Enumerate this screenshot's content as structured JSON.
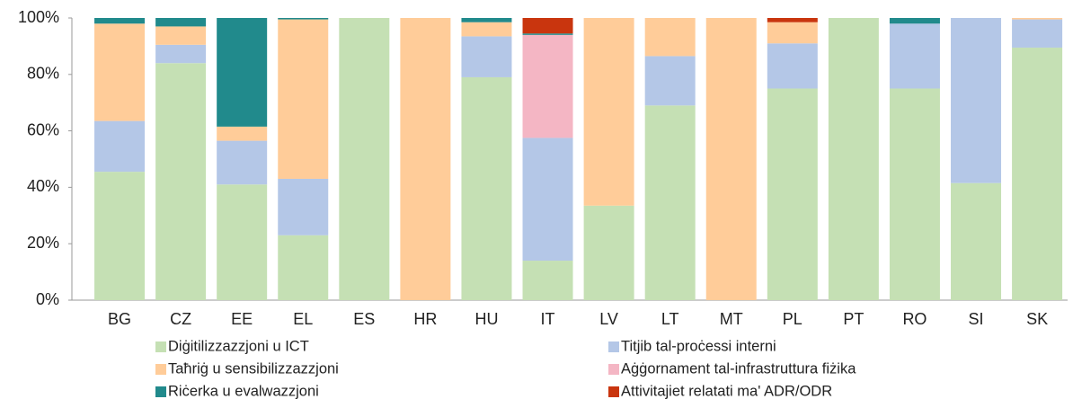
{
  "chart_data": {
    "type": "stacked_bar",
    "categories": [
      "BG",
      "CZ",
      "EE",
      "EL",
      "ES",
      "HR",
      "HU",
      "IT",
      "LV",
      "LT",
      "MT",
      "PL",
      "PT",
      "RO",
      "SI",
      "SK"
    ],
    "series": [
      {
        "name": "Diġitilizzazzjoni u ICT",
        "color": "#c5e0b4",
        "values": [
          45.5,
          84,
          41,
          23,
          100,
          0,
          79,
          14,
          33.5,
          69,
          0,
          75,
          100,
          75,
          41.5,
          89.5
        ]
      },
      {
        "name": "Titjib tal-proċessi interni",
        "color": "#b4c7e7",
        "values": [
          18,
          6.5,
          15.5,
          20,
          0,
          0,
          14.5,
          43.5,
          0,
          17.5,
          0,
          16,
          0,
          23,
          58.5,
          10
        ]
      },
      {
        "name": "Taħriġ u sensibilizzazzjoni",
        "color": "#ffcc99",
        "values": [
          34.5,
          6.5,
          5,
          56.5,
          0,
          100,
          5,
          0,
          66.5,
          13.5,
          100,
          7.5,
          0,
          0,
          0,
          0.5
        ]
      },
      {
        "name": "Aġġornament tal-infrastruttura  fiżika",
        "color": "#f4b6c4",
        "values": [
          0,
          0,
          0,
          0,
          0,
          0,
          0,
          36.5,
          0,
          0,
          0,
          0,
          0,
          0,
          0,
          0
        ]
      },
      {
        "name": "Riċerka u evalwazzjoni",
        "color": "#218a8c",
        "values": [
          2,
          3,
          38.5,
          0.5,
          0,
          0,
          1.5,
          0.5,
          0,
          0,
          0,
          0,
          0,
          2,
          0,
          0
        ]
      },
      {
        "name": "Attivitajiet relatati ma' ADR/ODR",
        "color": "#c9350e",
        "values": [
          0,
          0,
          0,
          0,
          0,
          0,
          0,
          5.5,
          0,
          0,
          0,
          1.5,
          0,
          0,
          0,
          0
        ]
      }
    ],
    "ylim": [
      0,
      100
    ],
    "yticks": [
      {
        "value": 0,
        "label": "0%"
      },
      {
        "value": 20,
        "label": "20%"
      },
      {
        "value": 40,
        "label": "40%"
      },
      {
        "value": 60,
        "label": "60%"
      },
      {
        "value": 80,
        "label": "80%"
      },
      {
        "value": 100,
        "label": "100%"
      }
    ],
    "grid": false
  }
}
